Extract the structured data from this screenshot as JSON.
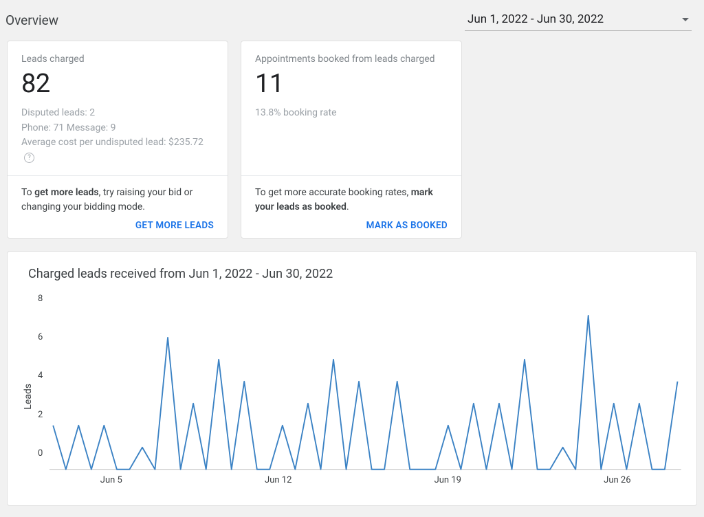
{
  "header": {
    "title": "Overview",
    "date_range": "Jun 1, 2022 - Jun 30, 2022"
  },
  "cards": {
    "leads": {
      "label": "Leads charged",
      "value": "82",
      "disputed": "Disputed leads: 2",
      "breakdown": "Phone: 71   Message: 9",
      "avg_cost": "Average cost per undisputed lead: $235.72",
      "footer_prefix": "To ",
      "footer_bold": "get more leads",
      "footer_suffix": ", try raising your bid or changing your bidding mode.",
      "action": "GET MORE LEADS"
    },
    "appointments": {
      "label": "Appointments booked from leads charged",
      "value": "11",
      "rate": "13.8% booking rate",
      "footer_prefix": "To get more accurate booking rates, ",
      "footer_bold": "mark your leads as booked",
      "footer_suffix": ".",
      "action": "MARK AS BOOKED"
    }
  },
  "chart": {
    "title": "Charged leads received from Jun 1, 2022 - Jun 30, 2022",
    "type": "line",
    "y_label": "Leads",
    "y_ticks": [
      "8",
      "6",
      "4",
      "2",
      "0"
    ],
    "ylim": [
      0,
      8
    ],
    "x_tick_labels": [
      "Jun 5",
      "Jun 12",
      "Jun 19",
      "Jun 26"
    ],
    "x_tick_indices": [
      4,
      11,
      18,
      25
    ],
    "values": [
      2,
      0,
      2,
      0,
      2,
      0,
      0,
      1,
      0,
      6,
      0,
      3,
      0,
      5,
      0,
      4,
      0,
      0,
      2,
      0,
      3,
      0,
      5,
      0,
      4,
      0,
      0,
      4,
      0,
      0,
      0,
      2,
      0,
      3,
      0,
      3,
      0,
      5,
      0,
      0,
      1,
      0,
      7,
      0,
      3,
      0,
      3,
      0,
      0,
      4
    ],
    "line_color": "#3b82c4",
    "line_width": 1.8,
    "baseline_color": "#bdbdbd",
    "background_color": "#ffffff"
  }
}
